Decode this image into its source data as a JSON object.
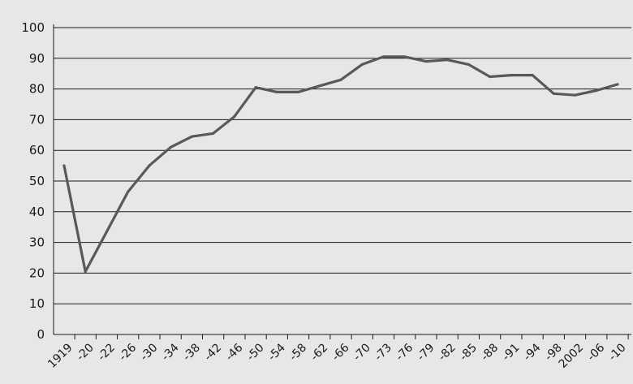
{
  "chart_data": {
    "type": "line",
    "title": "",
    "xlabel": "",
    "ylabel": "",
    "ylim": [
      0,
      100
    ],
    "yticks": [
      0,
      10,
      20,
      30,
      40,
      50,
      60,
      70,
      80,
      90,
      100
    ],
    "grid": "horizontal",
    "legend": "none",
    "colors": {
      "background": "#e6e7e8",
      "line": "#595959",
      "grid": "#1a1a1a",
      "axis": "#1a1a1a",
      "text": "#1a1a1a"
    },
    "x": [
      "1919",
      "1920",
      "1922",
      "1926",
      "1930",
      "1934",
      "1938",
      "1942",
      "1946",
      "1950",
      "1954",
      "1958",
      "1962",
      "1966",
      "1970",
      "1973",
      "1976",
      "1979",
      "1982",
      "1985",
      "1988",
      "1991",
      "1994",
      "1998",
      "2002",
      "2006",
      "2010"
    ],
    "x_tick_labels": [
      "1919",
      "-20",
      "-22",
      "-26",
      "-30",
      "-34",
      "-38",
      "-42",
      "-46",
      "-50",
      "-54",
      "-58",
      "-62",
      "-66",
      "-70",
      "-73",
      "-76",
      "-79",
      "-82",
      "-85",
      "-88",
      "-91",
      "-94",
      "-98",
      "2002",
      "-06",
      "-10"
    ],
    "series": [
      {
        "values": [
          55,
          20.5,
          33.5,
          46.5,
          55,
          61,
          64.5,
          65.5,
          71,
          80.5,
          79,
          79,
          81,
          83,
          88,
          90.5,
          90.5,
          89,
          89.5,
          88,
          84,
          84.5,
          84.5,
          78.5,
          78,
          79.5,
          81.5
        ]
      }
    ]
  }
}
